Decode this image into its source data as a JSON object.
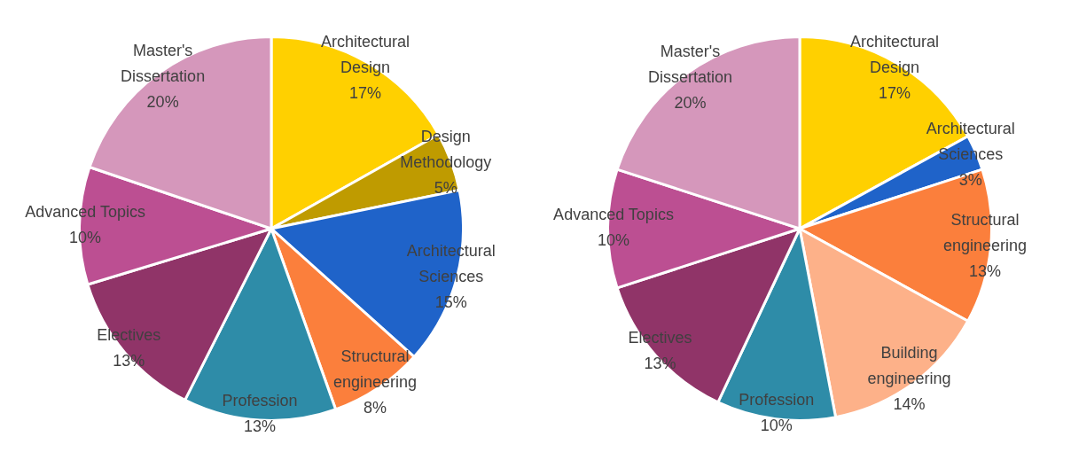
{
  "chart_data": [
    {
      "type": "pie",
      "categories": [
        "Architectural Design",
        "Design Methodology",
        "Architectural Sciences",
        "Structural engineering",
        "Profession",
        "Electives",
        "Advanced Topics",
        "Master's Dissertation"
      ],
      "values": [
        17,
        5,
        15,
        8,
        13,
        13,
        10,
        20
      ],
      "value_labels": [
        "17%",
        "5%",
        "15%",
        "8%",
        "13%",
        "13%",
        "10%",
        "20%"
      ],
      "colors": [
        "#ffd000",
        "#bf9b00",
        "#1f63c9",
        "#fb7f3c",
        "#2e8ca8",
        "#903468",
        "#bc4f92",
        "#d597bb"
      ],
      "legend": false
    },
    {
      "type": "pie",
      "categories": [
        "Architectural Design",
        "Architectural Sciences",
        "Structural engineering",
        "Building engineering",
        "Profession",
        "Electives",
        "Advanced Topics",
        "Master's Dissertation"
      ],
      "values": [
        17,
        3,
        13,
        14,
        10,
        13,
        10,
        20
      ],
      "value_labels": [
        "17%",
        "3%",
        "13%",
        "14%",
        "10%",
        "13%",
        "10%",
        "20%"
      ],
      "colors": [
        "#ffd000",
        "#1f63c9",
        "#fb7f3c",
        "#fdb189",
        "#2e8ca8",
        "#903468",
        "#bc4f92",
        "#d597bb"
      ],
      "legend": false
    }
  ]
}
